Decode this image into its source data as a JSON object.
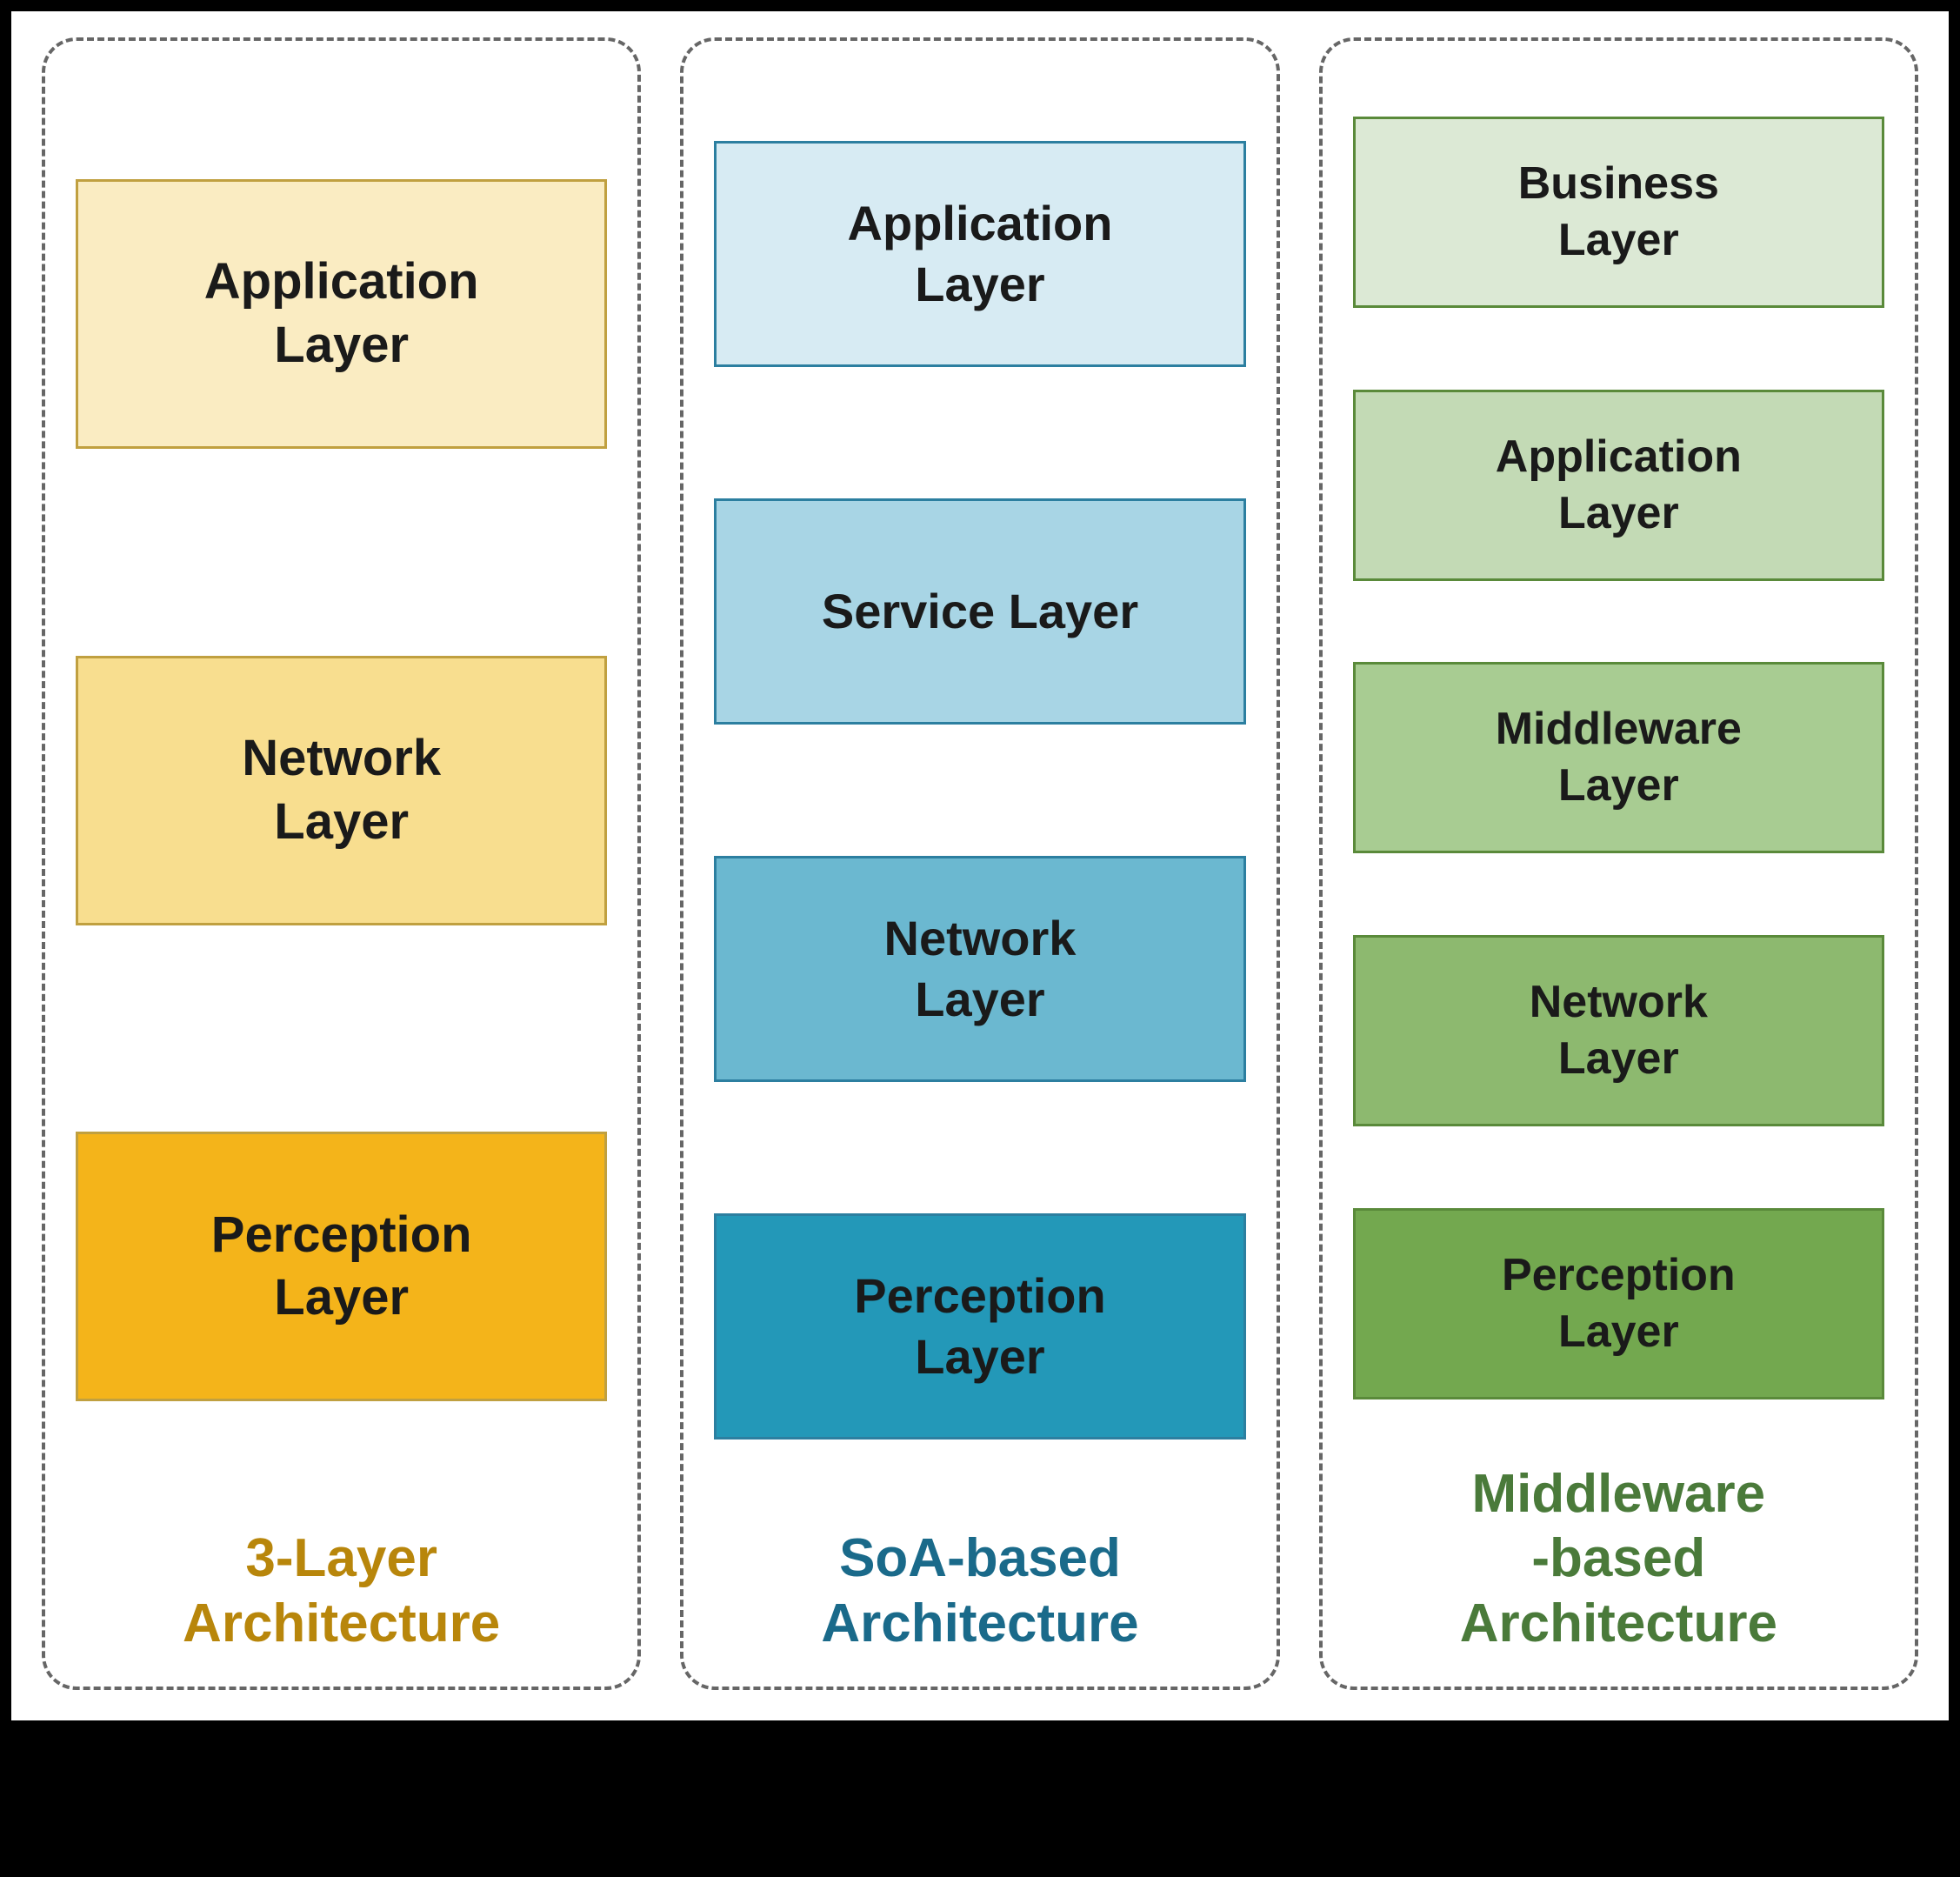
{
  "diagram": {
    "background_color": "#ffffff",
    "border_style": "dashed",
    "border_color": "#666666",
    "border_radius": 40,
    "columns": [
      {
        "id": "three-layer",
        "title_lines": [
          "3-Layer",
          "Architecture"
        ],
        "title_color": "#b8860b",
        "border_color": "#c0a040",
        "layers": [
          {
            "label": "Application Layer",
            "fill": "#faecc2",
            "lines": [
              "Application",
              "Layer"
            ]
          },
          {
            "label": "Network Layer",
            "fill": "#f8de8f",
            "lines": [
              "Network",
              "Layer"
            ]
          },
          {
            "label": "Perception Layer",
            "fill": "#f4b41a",
            "lines": [
              "Perception",
              "Layer"
            ]
          }
        ]
      },
      {
        "id": "soa-based",
        "title_lines": [
          "SoA-based",
          "Architecture"
        ],
        "title_color": "#1a6a8a",
        "border_color": "#2c7fa0",
        "layers": [
          {
            "label": "Application Layer",
            "fill": "#d7ebf3",
            "lines": [
              "Application",
              "Layer"
            ]
          },
          {
            "label": "Service Layer",
            "fill": "#a8d5e5",
            "lines": [
              "Service Layer"
            ]
          },
          {
            "label": "Network Layer",
            "fill": "#6bb8d0",
            "lines": [
              "Network",
              "Layer"
            ]
          },
          {
            "label": "Perception Layer",
            "fill": "#2398b8",
            "lines": [
              "Perception",
              "Layer"
            ]
          }
        ]
      },
      {
        "id": "middleware-based",
        "title_lines": [
          "Middleware",
          "-based",
          "Architecture"
        ],
        "title_color": "#4a7a3a",
        "border_color": "#5a8a3a",
        "layers": [
          {
            "label": "Business Layer",
            "fill": "#dce9d5",
            "lines": [
              "Business",
              "Layer"
            ]
          },
          {
            "label": "Application Layer",
            "fill": "#c3dab5",
            "lines": [
              "Application",
              "Layer"
            ]
          },
          {
            "label": "Middleware Layer",
            "fill": "#a8cc92",
            "lines": [
              "Middleware",
              "Layer"
            ]
          },
          {
            "label": "Network Layer",
            "fill": "#8db96f",
            "lines": [
              "Network",
              "Layer"
            ]
          },
          {
            "label": "Perception Layer",
            "fill": "#73a84f",
            "lines": [
              "Perception",
              "Layer"
            ]
          }
        ]
      }
    ],
    "layer_label_fontsize": 56,
    "title_fontsize": 62,
    "font_weight": 700
  }
}
